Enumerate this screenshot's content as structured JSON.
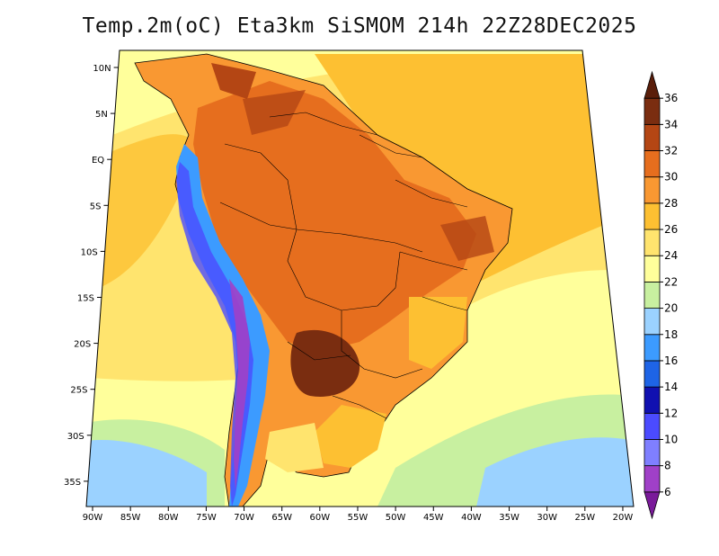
{
  "title": "Temp.2m(oC) Eta3km SiSMOM 214h 22Z28DEC2025",
  "lat_labels": [
    "10N",
    "5N",
    "EQ",
    "5S",
    "10S",
    "15S",
    "20S",
    "25S",
    "30S",
    "35S"
  ],
  "lon_labels": [
    "90W",
    "85W",
    "80W",
    "75W",
    "70W",
    "65W",
    "60W",
    "55W",
    "50W",
    "45W",
    "40W",
    "35W",
    "30W",
    "25W",
    "20W"
  ],
  "colorbar": {
    "levels": [
      "6",
      "8",
      "10",
      "12",
      "14",
      "16",
      "18",
      "20",
      "22",
      "24",
      "26",
      "28",
      "30",
      "32",
      "34",
      "36"
    ],
    "colors": [
      "#7a1a9a",
      "#a040c8",
      "#7f7fff",
      "#4b4bff",
      "#1010b0",
      "#1e64e6",
      "#3c9bff",
      "#9bd2ff",
      "#c8f0a0",
      "#ffff9b",
      "#ffe46e",
      "#fdc032",
      "#f99832",
      "#e66e1e",
      "#b44614",
      "#7a2d10",
      "#5a1e0a"
    ]
  },
  "colors": {
    "ocean_warm": "#fdc032",
    "ocean_mild": "#ffe46e",
    "ocean_cool": "#ffff9b",
    "ocean_cold": "#9bd2ff",
    "land_hot": "#e66e1e",
    "land_very_hot": "#b44614",
    "andes_cold": "#3c9bff",
    "andes_very_cold": "#7a1a9a"
  }
}
